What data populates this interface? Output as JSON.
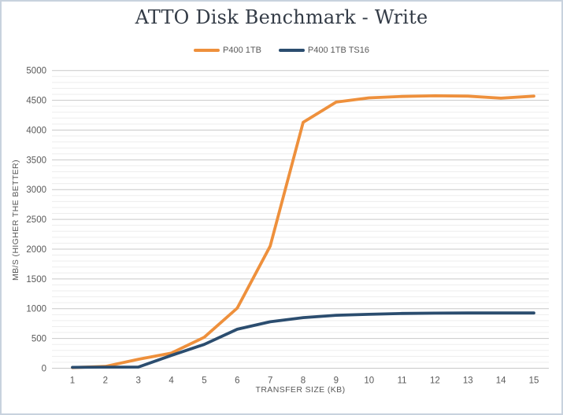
{
  "frame": {
    "background": "#ffffff",
    "border_color": "#c8d2de"
  },
  "chart_data": {
    "type": "line",
    "title": "ATTO Disk Benchmark - Write",
    "xlabel": "TRANSFER SIZE (KB)",
    "ylabel": "MB/S (HIGHER THE BETTER)",
    "categories": [
      1,
      2,
      3,
      4,
      5,
      6,
      7,
      8,
      9,
      10,
      11,
      12,
      13,
      14,
      15
    ],
    "series": [
      {
        "name": "P400 1TB",
        "color": "#EE903C",
        "values": [
          10,
          30,
          150,
          255,
          520,
          1010,
          2050,
          4130,
          4470,
          4540,
          4565,
          4575,
          4570,
          4535,
          4570
        ]
      },
      {
        "name": "P400 1TB TS16",
        "color": "#2B4D6F",
        "values": [
          15,
          18,
          20,
          215,
          400,
          655,
          780,
          850,
          890,
          905,
          920,
          925,
          928,
          928,
          928
        ]
      }
    ],
    "ylim": [
      0,
      5000
    ],
    "y_major_step": 500,
    "y_minor_step": 100,
    "grid": true,
    "legend_position": "top",
    "colors": {
      "major_grid": "#C9C9C9",
      "minor_grid": "#EDEDED",
      "axis_text": "#595959",
      "title_text": "#333B46"
    }
  }
}
